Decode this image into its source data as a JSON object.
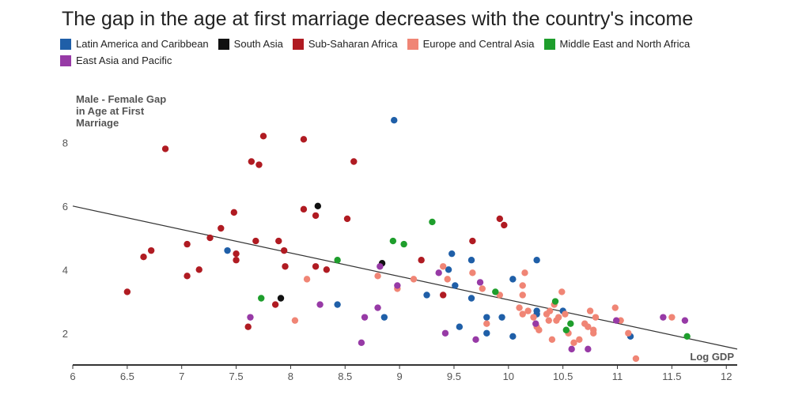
{
  "chart_data": {
    "type": "scatter",
    "title": "The gap in the age at first marriage decreases with the country's income",
    "xlabel": "Log GDP",
    "ylabel_lines": [
      "Male - Female Gap",
      "in Age at First",
      "Marriage"
    ],
    "xlim": [
      6,
      12.1
    ],
    "ylim": [
      1,
      9.5
    ],
    "x_ticks": [
      6,
      6.5,
      7,
      7.5,
      8,
      8.5,
      9,
      9.5,
      10,
      10.5,
      11,
      11.5,
      12
    ],
    "x_tick_labels": [
      "6",
      "6.5",
      "7",
      "7.5",
      "8",
      "8.5",
      "9",
      "9.5",
      "10",
      "10.5",
      "11",
      "11.5",
      "12"
    ],
    "y_ticks": [
      2,
      4,
      6,
      8
    ],
    "y_tick_labels": [
      "2",
      "4",
      "6",
      "8"
    ],
    "grid": false,
    "legend_position": "top-left",
    "trend_line": {
      "x": [
        6,
        12.1
      ],
      "y": [
        6.0,
        1.5
      ]
    },
    "series": [
      {
        "name": "Latin America and Caribbean",
        "color": "#1f5fa8",
        "points": [
          [
            8.95,
            8.7
          ],
          [
            7.42,
            4.6
          ],
          [
            8.43,
            2.9
          ],
          [
            8.86,
            2.5
          ],
          [
            9.25,
            3.2
          ],
          [
            9.45,
            4.0
          ],
          [
            9.48,
            4.5
          ],
          [
            9.51,
            3.5
          ],
          [
            9.55,
            2.2
          ],
          [
            9.66,
            4.3
          ],
          [
            9.66,
            3.1
          ],
          [
            9.8,
            2.5
          ],
          [
            9.8,
            2.0
          ],
          [
            9.94,
            2.5
          ],
          [
            10.04,
            3.7
          ],
          [
            10.04,
            1.9
          ],
          [
            10.26,
            4.3
          ],
          [
            10.26,
            2.7
          ],
          [
            10.26,
            2.6
          ],
          [
            10.5,
            2.7
          ],
          [
            11.12,
            1.9
          ]
        ]
      },
      {
        "name": "South Asia",
        "color": "#111111",
        "points": [
          [
            8.25,
            6.0
          ],
          [
            8.84,
            4.2
          ],
          [
            7.91,
            3.1
          ]
        ]
      },
      {
        "name": "Sub-Saharan Africa",
        "color": "#b01b22",
        "points": [
          [
            6.5,
            3.3
          ],
          [
            6.65,
            4.4
          ],
          [
            6.72,
            4.6
          ],
          [
            6.85,
            7.8
          ],
          [
            7.05,
            4.8
          ],
          [
            7.05,
            3.8
          ],
          [
            7.16,
            4.0
          ],
          [
            7.26,
            5.0
          ],
          [
            7.36,
            5.3
          ],
          [
            7.48,
            5.8
          ],
          [
            7.5,
            4.5
          ],
          [
            7.5,
            4.3
          ],
          [
            7.61,
            2.2
          ],
          [
            7.64,
            7.4
          ],
          [
            7.68,
            4.9
          ],
          [
            7.71,
            7.3
          ],
          [
            7.75,
            8.2
          ],
          [
            7.86,
            2.9
          ],
          [
            7.89,
            4.9
          ],
          [
            7.94,
            4.6
          ],
          [
            7.95,
            4.1
          ],
          [
            8.12,
            5.9
          ],
          [
            8.12,
            8.1
          ],
          [
            8.23,
            5.7
          ],
          [
            8.23,
            4.1
          ],
          [
            8.33,
            4.0
          ],
          [
            8.52,
            5.6
          ],
          [
            8.58,
            7.4
          ],
          [
            9.2,
            4.3
          ],
          [
            9.4,
            3.2
          ],
          [
            9.67,
            4.9
          ],
          [
            9.92,
            5.6
          ],
          [
            9.96,
            5.4
          ]
        ]
      },
      {
        "name": "Europe and Central Asia",
        "color": "#f08575",
        "points": [
          [
            8.04,
            2.4
          ],
          [
            8.15,
            3.7
          ],
          [
            8.8,
            3.8
          ],
          [
            8.98,
            3.4
          ],
          [
            9.13,
            3.7
          ],
          [
            9.4,
            4.1
          ],
          [
            9.44,
            3.7
          ],
          [
            9.67,
            3.9
          ],
          [
            9.76,
            3.4
          ],
          [
            9.8,
            2.3
          ],
          [
            9.92,
            3.2
          ],
          [
            10.1,
            2.8
          ],
          [
            10.13,
            3.5
          ],
          [
            10.13,
            3.2
          ],
          [
            10.13,
            2.6
          ],
          [
            10.15,
            3.9
          ],
          [
            10.18,
            2.7
          ],
          [
            10.23,
            2.5
          ],
          [
            10.26,
            2.2
          ],
          [
            10.28,
            2.1
          ],
          [
            10.35,
            2.6
          ],
          [
            10.37,
            2.4
          ],
          [
            10.38,
            2.7
          ],
          [
            10.4,
            1.8
          ],
          [
            10.42,
            2.9
          ],
          [
            10.44,
            2.4
          ],
          [
            10.46,
            2.5
          ],
          [
            10.49,
            3.3
          ],
          [
            10.52,
            2.6
          ],
          [
            10.55,
            2.0
          ],
          [
            10.6,
            1.7
          ],
          [
            10.65,
            1.8
          ],
          [
            10.7,
            2.3
          ],
          [
            10.73,
            2.2
          ],
          [
            10.75,
            2.7
          ],
          [
            10.78,
            2.0
          ],
          [
            10.78,
            2.1
          ],
          [
            10.8,
            2.5
          ],
          [
            10.98,
            2.8
          ],
          [
            11.03,
            2.4
          ],
          [
            11.1,
            2.0
          ],
          [
            11.17,
            1.2
          ],
          [
            11.5,
            2.5
          ]
        ]
      },
      {
        "name": "Middle East and North Africa",
        "color": "#1e9e2c",
        "points": [
          [
            7.73,
            3.1
          ],
          [
            8.43,
            4.3
          ],
          [
            8.94,
            4.9
          ],
          [
            9.04,
            4.8
          ],
          [
            9.3,
            5.5
          ],
          [
            9.88,
            3.3
          ],
          [
            10.43,
            3.0
          ],
          [
            10.53,
            2.1
          ],
          [
            10.57,
            2.3
          ],
          [
            11.64,
            1.9
          ]
        ]
      },
      {
        "name": "East Asia and Pacific",
        "color": "#973aa6",
        "points": [
          [
            7.63,
            2.5
          ],
          [
            8.27,
            2.9
          ],
          [
            8.65,
            1.7
          ],
          [
            8.68,
            2.5
          ],
          [
            8.8,
            2.8
          ],
          [
            8.82,
            4.1
          ],
          [
            8.98,
            3.5
          ],
          [
            9.36,
            3.9
          ],
          [
            9.42,
            2.0
          ],
          [
            9.7,
            1.8
          ],
          [
            9.74,
            3.6
          ],
          [
            10.25,
            2.3
          ],
          [
            10.58,
            1.5
          ],
          [
            10.73,
            1.5
          ],
          [
            10.99,
            2.4
          ],
          [
            11.42,
            2.5
          ],
          [
            11.62,
            2.4
          ]
        ]
      }
    ]
  }
}
